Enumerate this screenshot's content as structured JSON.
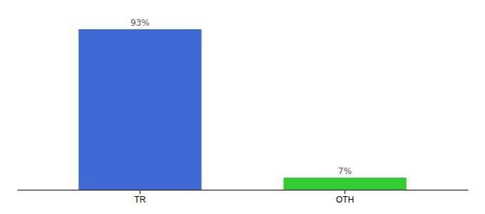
{
  "chart_data": {
    "type": "bar",
    "categories": [
      "TR",
      "OTH"
    ],
    "values": [
      93,
      7
    ],
    "value_labels": [
      "93%",
      "7%"
    ],
    "colors": [
      "#4169d4",
      "#33cc33"
    ],
    "ylim": [
      0,
      100
    ],
    "data_labels": true,
    "tick_labels": "x"
  }
}
